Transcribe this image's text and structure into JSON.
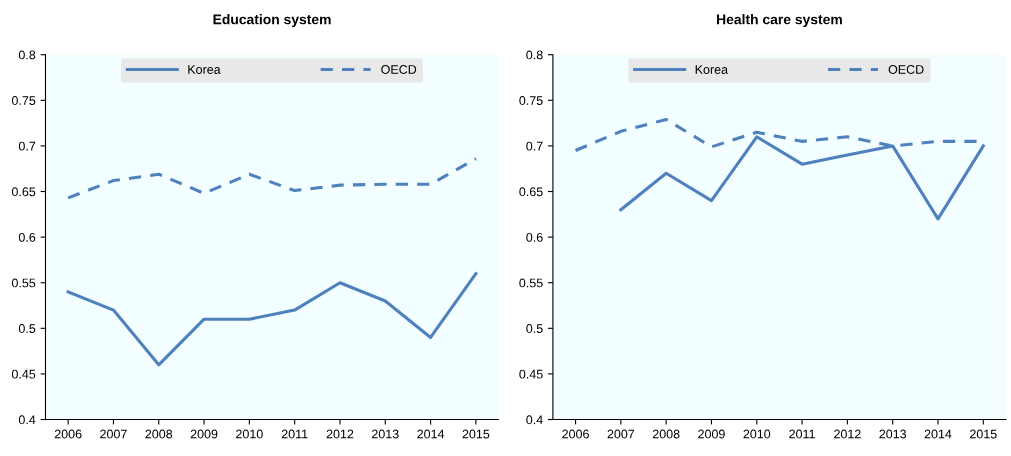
{
  "chart_data": [
    {
      "type": "line",
      "title": "Education system",
      "categories": [
        "2006",
        "2007",
        "2008",
        "2009",
        "2010",
        "2011",
        "2012",
        "2013",
        "2014",
        "2015"
      ],
      "series": [
        {
          "name": "Korea",
          "color": "#4f81bd",
          "line_style": "solid",
          "values": [
            0.54,
            0.52,
            0.46,
            0.51,
            0.51,
            0.52,
            0.55,
            0.53,
            0.49,
            0.56
          ]
        },
        {
          "name": "OECD",
          "color": "#4f81bd",
          "line_style": "dashed",
          "values": [
            0.643,
            0.662,
            0.669,
            0.648,
            0.669,
            0.651,
            0.657,
            0.658,
            0.658,
            0.686
          ]
        }
      ],
      "ylim": [
        0.4,
        0.8
      ],
      "yticks": [
        0.4,
        0.45,
        0.5,
        0.55,
        0.6,
        0.65,
        0.7,
        0.75,
        0.8
      ],
      "legend": "top",
      "grid": false
    },
    {
      "type": "line",
      "title": "Health care system",
      "categories": [
        "2006",
        "2007",
        "2008",
        "2009",
        "2010",
        "2011",
        "2012",
        "2013",
        "2014",
        "2015"
      ],
      "series": [
        {
          "name": "Korea",
          "color": "#4f81bd",
          "line_style": "solid",
          "values": [
            null,
            0.63,
            0.67,
            0.64,
            0.71,
            0.68,
            0.69,
            0.7,
            0.62,
            0.7
          ]
        },
        {
          "name": "OECD",
          "color": "#4f81bd",
          "line_style": "dashed",
          "values": [
            0.695,
            0.716,
            0.729,
            0.699,
            0.715,
            0.705,
            0.71,
            0.7,
            0.705,
            0.705
          ]
        }
      ],
      "ylim": [
        0.4,
        0.8
      ],
      "yticks": [
        0.4,
        0.45,
        0.5,
        0.55,
        0.6,
        0.65,
        0.7,
        0.75,
        0.8
      ],
      "legend": "top",
      "grid": false
    }
  ]
}
